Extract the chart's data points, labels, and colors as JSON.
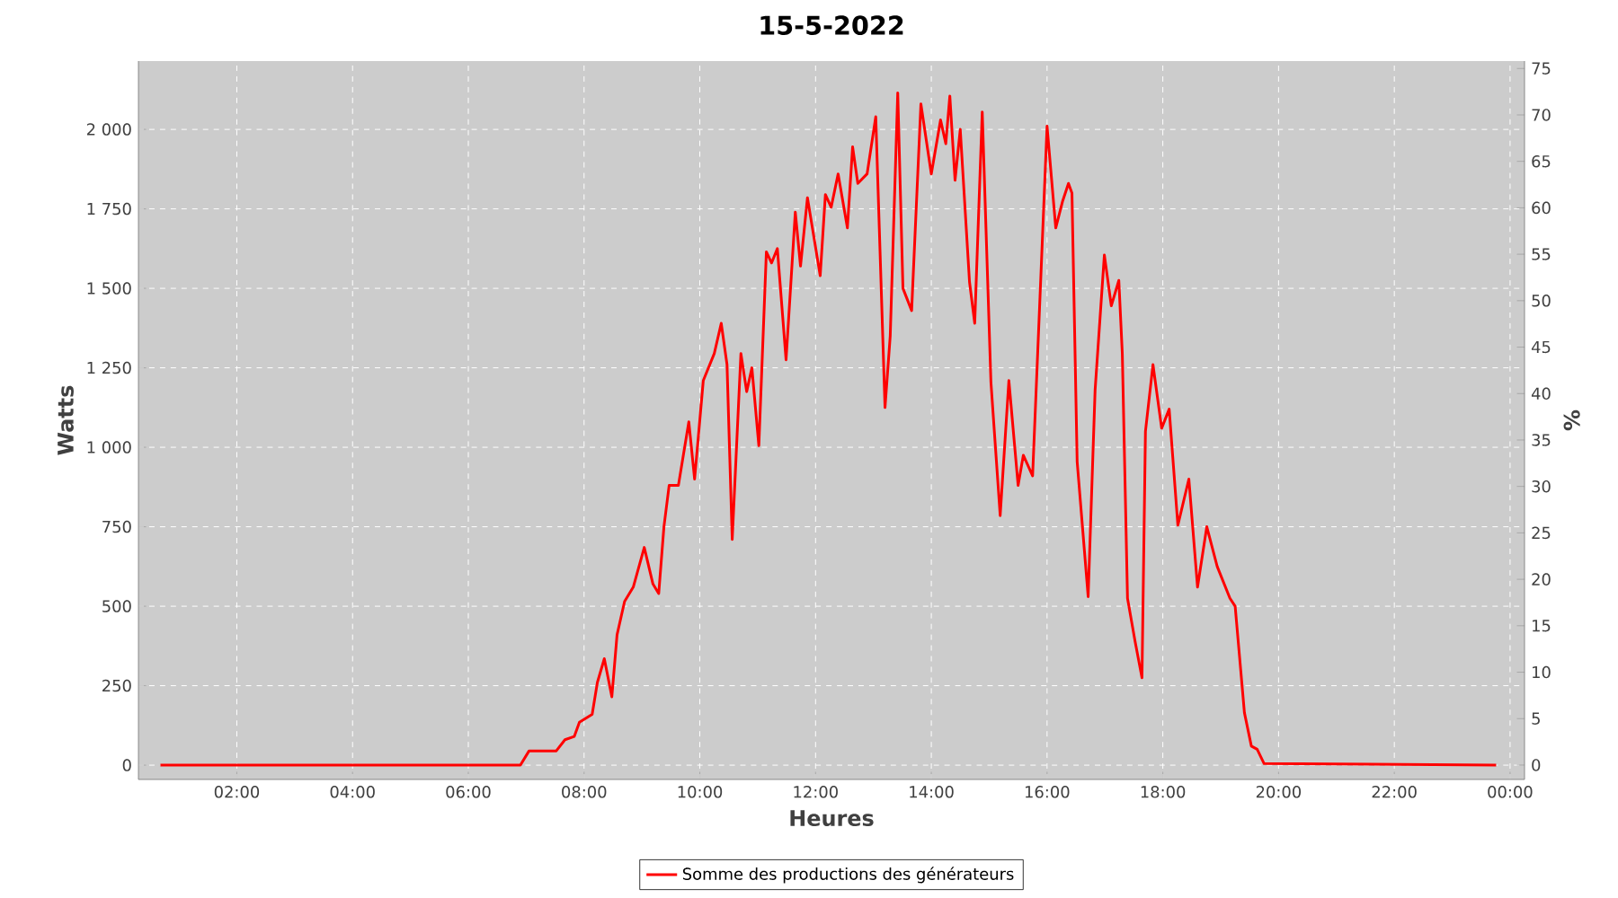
{
  "chart_data": {
    "type": "line",
    "title": "15-5-2022",
    "xlabel": "Heures",
    "ylabel": "Watts",
    "y2label": "%",
    "x": [
      0.68,
      3,
      5,
      6.9,
      7.05,
      7.52,
      7.67,
      7.83,
      7.92,
      8.14,
      8.23,
      8.35,
      8.48,
      8.57,
      8.7,
      8.85,
      9.04,
      9.19,
      9.29,
      9.38,
      9.47,
      9.63,
      9.81,
      9.91,
      10.06,
      10.25,
      10.37,
      10.47,
      10.56,
      10.71,
      10.81,
      10.9,
      11.02,
      11.15,
      11.24,
      11.34,
      11.49,
      11.65,
      11.74,
      11.86,
      12.08,
      12.17,
      12.27,
      12.39,
      12.55,
      12.64,
      12.73,
      12.89,
      13.04,
      13.2,
      13.29,
      13.42,
      13.51,
      13.66,
      13.82,
      14.0,
      14.16,
      14.25,
      14.32,
      14.41,
      14.5,
      14.66,
      14.75,
      14.88,
      15.03,
      15.19,
      15.34,
      15.5,
      15.59,
      15.75,
      16.0,
      16.15,
      16.27,
      16.37,
      16.43,
      16.52,
      16.71,
      16.83,
      16.99,
      17.11,
      17.24,
      17.3,
      17.39,
      17.52,
      17.64,
      17.7,
      17.83,
      17.98,
      18.11,
      18.26,
      18.45,
      18.6,
      18.76,
      18.94,
      19.16,
      19.25,
      19.41,
      19.53,
      19.63,
      19.75,
      23.76
    ],
    "series": [
      {
        "name": "Somme des productions des  générateurs",
        "color": "#ff0000",
        "values": [
          0,
          0,
          0,
          0,
          45,
          45,
          80,
          90,
          135,
          160,
          260,
          335,
          215,
          410,
          515,
          560,
          685,
          570,
          540,
          750,
          880,
          880,
          1080,
          900,
          1210,
          1295,
          1390,
          1260,
          710,
          1295,
          1175,
          1250,
          1005,
          1615,
          1580,
          1625,
          1275,
          1740,
          1570,
          1785,
          1540,
          1795,
          1755,
          1860,
          1690,
          1945,
          1830,
          1860,
          2040,
          1125,
          1350,
          2115,
          1500,
          1430,
          2080,
          1860,
          2030,
          1955,
          2105,
          1840,
          2000,
          1520,
          1390,
          2055,
          1205,
          785,
          1210,
          880,
          975,
          910,
          2010,
          1690,
          1775,
          1830,
          1800,
          955,
          530,
          1180,
          1605,
          1445,
          1525,
          1295,
          525,
          390,
          275,
          1050,
          1260,
          1060,
          1120,
          755,
          900,
          560,
          750,
          625,
          525,
          500,
          165,
          60,
          50,
          5,
          0
        ]
      }
    ],
    "xlim": [
      0.3,
      24.25
    ],
    "xticks": [
      {
        "value": 2,
        "label": "02:00"
      },
      {
        "value": 4,
        "label": "04:00"
      },
      {
        "value": 6,
        "label": "06:00"
      },
      {
        "value": 8,
        "label": "08:00"
      },
      {
        "value": 10,
        "label": "10:00"
      },
      {
        "value": 12,
        "label": "12:00"
      },
      {
        "value": 14,
        "label": "14:00"
      },
      {
        "value": 16,
        "label": "16:00"
      },
      {
        "value": 18,
        "label": "18:00"
      },
      {
        "value": 20,
        "label": "20:00"
      },
      {
        "value": 22,
        "label": "22:00"
      },
      {
        "value": 24,
        "label": "00:00"
      }
    ],
    "ylim": [
      -45,
      2215
    ],
    "yticks": [
      0,
      250,
      500,
      750,
      {
        "value": 1000,
        "label": "1 000"
      },
      {
        "value": 1250,
        "label": "1 250"
      },
      {
        "value": 1500,
        "label": "1 500"
      },
      {
        "value": 1750,
        "label": "1 750"
      },
      {
        "value": 2000,
        "label": "2 000"
      }
    ],
    "y2lim": [
      -1.55,
      75.8
    ],
    "y2ticks": [
      0,
      5,
      10,
      15,
      20,
      25,
      30,
      35,
      40,
      45,
      50,
      55,
      60,
      65,
      70,
      75
    ],
    "grid": true,
    "legend": "bottom",
    "marker": "none",
    "line_style": "solid"
  }
}
